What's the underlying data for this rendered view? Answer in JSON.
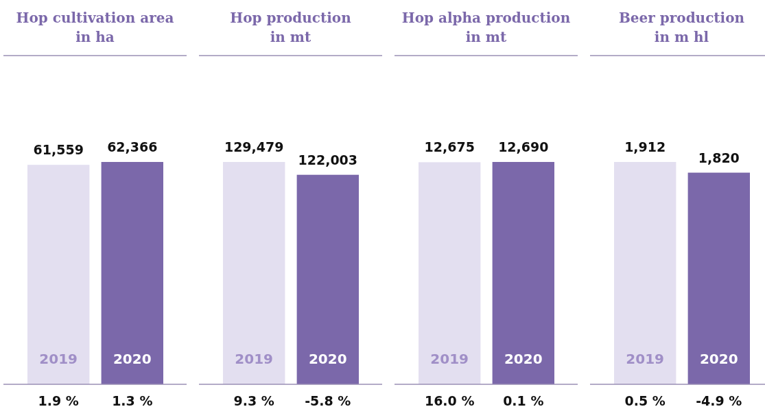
{
  "chart_data": [
    {
      "type": "bar",
      "title": "Hop cultivation area\nin ha",
      "categories": [
        "2019",
        "2020"
      ],
      "values": [
        61559,
        62366
      ],
      "colors": [
        "#e3dff0",
        "#7b68aa"
      ],
      "value_labels": [
        "61,559",
        "62,366"
      ],
      "annotations": [
        "1.9 %",
        "1.3 %"
      ]
    },
    {
      "type": "bar",
      "title": "Hop production\nin mt",
      "categories": [
        "2019",
        "2020"
      ],
      "values": [
        129479,
        122003
      ],
      "colors": [
        "#e3dff0",
        "#7b68aa"
      ],
      "value_labels": [
        "129,479",
        "122,003"
      ],
      "annotations": [
        "9.3 %",
        "-5.8 %"
      ]
    },
    {
      "type": "bar",
      "title": "Hop alpha production\nin mt",
      "categories": [
        "2019",
        "2020"
      ],
      "values": [
        12675,
        12690
      ],
      "colors": [
        "#e3dff0",
        "#7b68aa"
      ],
      "value_labels": [
        "12,675",
        "12,690"
      ],
      "annotations": [
        "16.0 %",
        "0.1 %"
      ]
    },
    {
      "type": "bar",
      "title": "Beer production\nin m hl",
      "categories": [
        "2019",
        "2020"
      ],
      "values": [
        1912,
        1820
      ],
      "colors": [
        "#e3dff0",
        "#7b68aa"
      ],
      "value_labels": [
        "1,912",
        "1,820"
      ],
      "annotations": [
        "0.5 %",
        "-4.9 %"
      ]
    }
  ]
}
